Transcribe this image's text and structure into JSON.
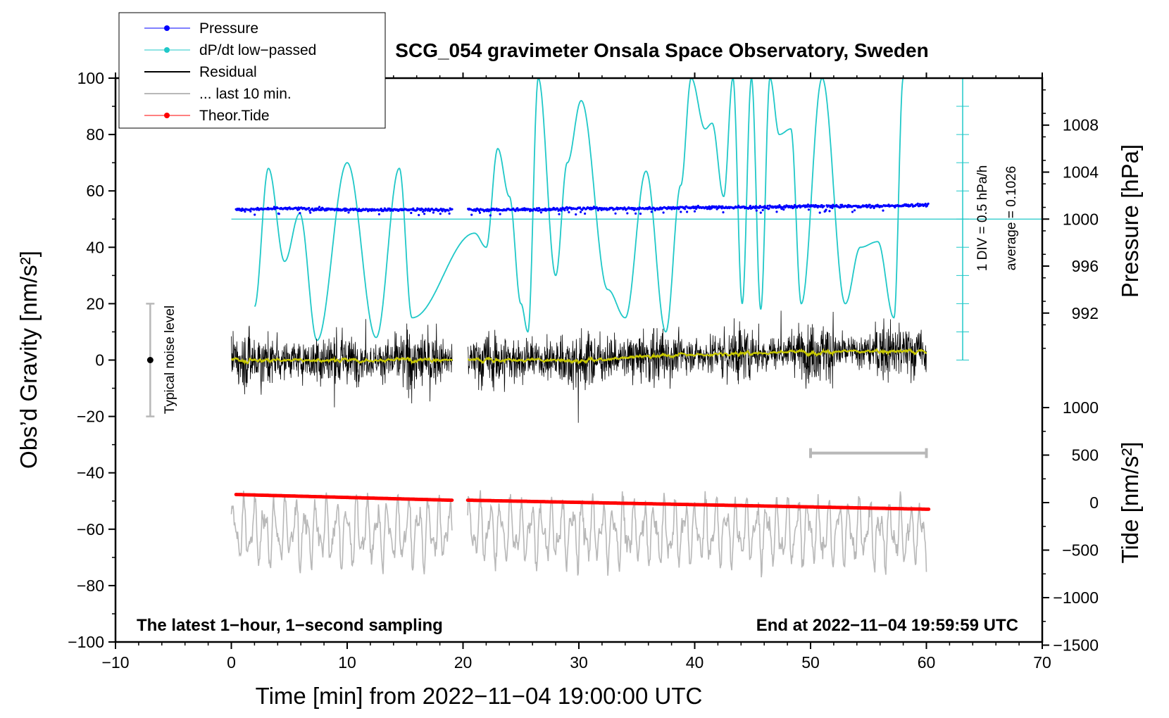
{
  "chart_data": {
    "type": "line",
    "title": "SCG_054 gravimeter Onsala Space Observatory, Sweden",
    "xlabel": "Time [min] from 2022−11−04 19:00:00 UTC",
    "ylabel_left": "Obs’d Gravity [nm/s²]",
    "ylabel_pressure": "Pressure [hPa]",
    "ylabel_tide": "Tide [nm/s²]",
    "xlim": [
      -10,
      70
    ],
    "ylim": [
      -100,
      100
    ],
    "x_ticks": [
      "−10",
      "0",
      "10",
      "20",
      "30",
      "40",
      "50",
      "60",
      "70"
    ],
    "y_ticks": [
      "100",
      "80",
      "60",
      "40",
      "20",
      "0",
      "−20",
      "−40",
      "−60",
      "−80",
      "−100"
    ],
    "pressure_ticks": [
      "1008",
      "1004",
      "1000",
      "996",
      "992"
    ],
    "tide_ticks": [
      "1000",
      "500",
      "0",
      "−500",
      "−1000",
      "−1500"
    ],
    "pressure_range_hpa": [
      988,
      1012
    ],
    "tide_range": [
      -1500,
      1500
    ],
    "legend": [
      {
        "label": "Pressure",
        "color": "#0000ff",
        "marker": true
      },
      {
        "label": "dP/dt low−passed",
        "color": "#20c8c8",
        "marker": true
      },
      {
        "label": "Residual",
        "color": "#000000",
        "marker": false
      },
      {
        "label": "... last 10 min.",
        "color": "#b8b8b8",
        "marker": false
      },
      {
        "label": "Theor.Tide",
        "color": "#ff0000",
        "marker": true
      }
    ],
    "dpdt_scale_label": "1 DIV = 0.5 hPa/h",
    "dpdt_average_label": "average = 0.1026",
    "noise_label": "Typical noise level",
    "noise_range": [
      -20,
      20
    ],
    "note_left": "The latest 1−hour, 1−second sampling",
    "note_right": "End at 2022−11−04 19:59:59 UTC",
    "last10_range_min": [
      50,
      60
    ],
    "series": [
      {
        "name": "Pressure",
        "unit": "hPa",
        "x": [
          0.4,
          5,
          10,
          15,
          19,
          20.5,
          25,
          30,
          35,
          40,
          45,
          50,
          55,
          60.2
        ],
        "values": [
          1000.8,
          1000.9,
          1000.8,
          1000.8,
          1000.8,
          1000.8,
          1000.8,
          1000.9,
          1000.9,
          1001.0,
          1001.0,
          1001.1,
          1001.1,
          1001.2
        ]
      },
      {
        "name": "dP/dt low−passed",
        "unit": "gravity-axis",
        "x": [
          2,
          3.2,
          4.6,
          5.9,
          7.4,
          10,
          12.5,
          14.5,
          15.6,
          21,
          22,
          23,
          24,
          25,
          25.6,
          26.5,
          28,
          29,
          30.2,
          32.5,
          34,
          35.8,
          37.5,
          38.8,
          39.7,
          40.9,
          41.5,
          42.5,
          43.3,
          44.1,
          44.9,
          45.7,
          46.5,
          47.3,
          48.3,
          49.2,
          51,
          53,
          54.3,
          55.8,
          57.2,
          58
        ],
        "values": [
          19,
          68,
          35,
          52,
          7,
          70,
          8,
          68,
          15,
          45,
          40,
          75,
          58,
          20,
          10,
          100,
          30,
          70,
          92,
          25,
          15,
          67,
          10,
          62,
          100,
          82,
          84,
          58,
          100,
          20,
          100,
          18,
          100,
          80,
          82,
          20,
          100,
          20,
          40,
          42,
          15,
          100
        ]
      },
      {
        "name": "Residual",
        "unit": "nm/s²",
        "x": [
          0,
          10,
          19,
          20.5,
          30,
          40,
          50,
          60
        ],
        "values": [
          0,
          0,
          0,
          0,
          0,
          2,
          3,
          3
        ]
      },
      {
        "name": "Theor.Tide",
        "unit": "nm/s²",
        "x": [
          0.4,
          19,
          20.5,
          60.2
        ],
        "values": [
          85,
          25,
          25,
          -70
        ]
      }
    ]
  }
}
